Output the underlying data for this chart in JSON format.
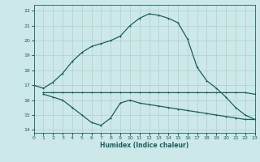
{
  "xlabel": "Humidex (Indice chaleur)",
  "bg_color": "#cce8e8",
  "grid_color": "#b0d0cc",
  "line_color": "#1a6060",
  "x_ticks": [
    0,
    1,
    2,
    3,
    4,
    5,
    6,
    7,
    8,
    9,
    10,
    11,
    12,
    13,
    14,
    15,
    16,
    17,
    18,
    19,
    20,
    21,
    22,
    23
  ],
  "y_ticks": [
    14,
    15,
    16,
    17,
    18,
    19,
    20,
    21,
    22
  ],
  "xlim": [
    0,
    23
  ],
  "ylim": [
    13.8,
    22.4
  ],
  "curve1_x": [
    0,
    1,
    2,
    3,
    4,
    5,
    6,
    7,
    8,
    9,
    10,
    11,
    12,
    13,
    14,
    15,
    16,
    17,
    18,
    19,
    20,
    21,
    22,
    23
  ],
  "curve1_y": [
    17.0,
    16.8,
    17.2,
    17.8,
    18.6,
    19.2,
    19.6,
    19.8,
    20.0,
    20.3,
    21.0,
    21.5,
    21.8,
    21.7,
    21.5,
    21.2,
    20.1,
    18.2,
    17.3,
    16.8,
    16.2,
    15.5,
    15.0,
    14.7
  ],
  "curve2_x": [
    1,
    2,
    3,
    4,
    5,
    6,
    7,
    8,
    9,
    10,
    11,
    12,
    13,
    14,
    15,
    16,
    17,
    18,
    19,
    20,
    21,
    22,
    23
  ],
  "curve2_y": [
    16.5,
    16.5,
    16.5,
    16.5,
    16.5,
    16.5,
    16.5,
    16.5,
    16.5,
    16.5,
    16.5,
    16.5,
    16.5,
    16.5,
    16.5,
    16.5,
    16.5,
    16.5,
    16.5,
    16.5,
    16.5,
    16.5,
    16.4
  ],
  "curve3_x": [
    1,
    2,
    3,
    4,
    5,
    6,
    7,
    8,
    9,
    10,
    11,
    12,
    13,
    14,
    15,
    16,
    17,
    18,
    19,
    20,
    21,
    22,
    23
  ],
  "curve3_y": [
    16.4,
    16.2,
    16.0,
    15.5,
    15.0,
    14.5,
    14.3,
    14.8,
    15.8,
    16.0,
    15.8,
    15.7,
    15.6,
    15.5,
    15.4,
    15.3,
    15.2,
    15.1,
    15.0,
    14.9,
    14.8,
    14.7,
    14.7
  ]
}
